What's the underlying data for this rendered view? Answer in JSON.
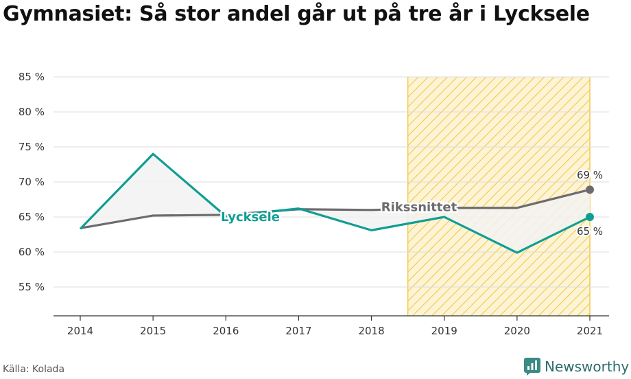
{
  "title": "Gymnasiet: Så stor andel går ut på tre år i Lycksele",
  "source": "Källa: Kolada",
  "brand": "Newsworthy",
  "colors": {
    "lycksele": "#0f9e94",
    "riket": "#6e6b70",
    "forecast": "#f3c94a",
    "fill": "#f2f2f2",
    "grid": "#dddddd"
  },
  "chart_data": {
    "type": "line",
    "x": [
      2014,
      2015,
      2016,
      2017,
      2018,
      2019,
      2020,
      2021
    ],
    "x_tick_labels": [
      "2014",
      "2015",
      "2016",
      "2017",
      "2018",
      "2019",
      "2020",
      "2021"
    ],
    "ylim": [
      51,
      85
    ],
    "y_ticks": [
      55,
      60,
      65,
      70,
      75,
      80,
      85
    ],
    "y_tick_labels": [
      "55 %",
      "60 %",
      "65 %",
      "70 %",
      "75 %",
      "80 %",
      "85 %"
    ],
    "grid": true,
    "highlight_range": [
      2018.5,
      2021
    ],
    "series": [
      {
        "name": "Rikssnittet",
        "values": [
          63.4,
          65.2,
          65.3,
          66.1,
          66.0,
          66.3,
          66.3,
          68.9
        ],
        "end_label": "69 %"
      },
      {
        "name": "Lycksele",
        "values": [
          63.3,
          74.0,
          65.1,
          66.2,
          63.1,
          65.0,
          59.9,
          65.0
        ],
        "end_label": "65 %"
      }
    ]
  }
}
